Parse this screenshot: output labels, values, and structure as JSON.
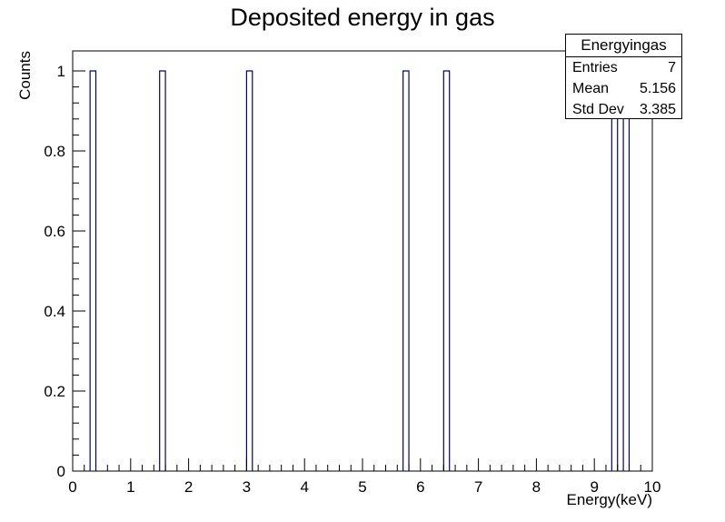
{
  "chart_data": {
    "type": "bar",
    "title": "Deposited energy in gas",
    "xlabel": "Energy(keV)",
    "ylabel": "Counts",
    "xlim": [
      0,
      10
    ],
    "ylim": [
      0,
      1.05
    ],
    "x_ticks": [
      "0",
      "1",
      "2",
      "3",
      "4",
      "5",
      "6",
      "7",
      "8",
      "9",
      "10"
    ],
    "y_ticks": [
      "0",
      "0.2",
      "0.4",
      "0.6",
      "0.8",
      "1"
    ],
    "bin_width": 0.1,
    "series": [
      {
        "bins": [
          {
            "x_low": 0.3,
            "x_high": 0.4,
            "count": 1
          },
          {
            "x_low": 1.5,
            "x_high": 1.6,
            "count": 1
          },
          {
            "x_low": 3.0,
            "x_high": 3.1,
            "count": 1
          },
          {
            "x_low": 5.7,
            "x_high": 5.8,
            "count": 1
          },
          {
            "x_low": 6.4,
            "x_high": 6.5,
            "count": 1
          },
          {
            "x_low": 9.3,
            "x_high": 9.4,
            "count": 1
          },
          {
            "x_low": 9.5,
            "x_high": 9.6,
            "count": 1
          }
        ]
      }
    ],
    "grid": false,
    "bar_color": "#000080",
    "stats_box": {
      "name": "Energyingas",
      "rows": [
        {
          "label": "Entries",
          "value": "7"
        },
        {
          "label": "Mean",
          "value": "5.156"
        },
        {
          "label": "Std Dev",
          "value": "3.385"
        }
      ],
      "placement": "top-right"
    }
  }
}
